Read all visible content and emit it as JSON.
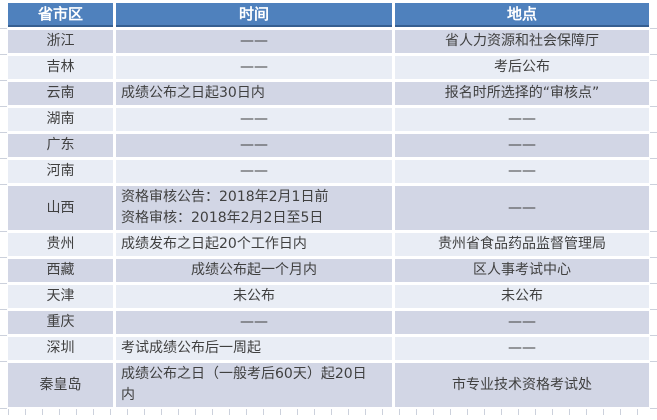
{
  "table": {
    "columns": [
      "省市区",
      "时间",
      "地点"
    ],
    "rows": [
      {
        "region": "浙江",
        "time": "——",
        "place": "省人力资源和社会保障厅"
      },
      {
        "region": "吉林",
        "time": "——",
        "place": "考后公布"
      },
      {
        "region": "云南",
        "time": "成绩公布之日起30日内",
        "time_align": "left",
        "place": "报名时所选择的“审核点”"
      },
      {
        "region": "湖南",
        "time": "——",
        "place": "——"
      },
      {
        "region": "广东",
        "time": "——",
        "place": "——"
      },
      {
        "region": "河南",
        "time": "——",
        "place": "——"
      },
      {
        "region": "山西",
        "time": "资格审核公告：2018年2月1日前\n资格审核：2018年2月2日至5日",
        "time_align": "left",
        "place": "——"
      },
      {
        "region": "贵州",
        "time": "成绩发布之日起20个工作日内",
        "time_align": "left",
        "place": "贵州省食品药品监督管理局"
      },
      {
        "region": "西藏",
        "time": "成绩公布起一个月内",
        "place": "区人事考试中心"
      },
      {
        "region": "天津",
        "time": "未公布",
        "place": "未公布"
      },
      {
        "region": "重庆",
        "time": "——",
        "place": "——"
      },
      {
        "region": "深圳",
        "time": "考试成绩公布后一周起",
        "time_align": "left",
        "place": "——"
      },
      {
        "region": "秦皇岛",
        "time": "成绩公布之日（一般考后60天）起20日内",
        "time_align": "left",
        "place": "市专业技术资格考试处"
      }
    ],
    "colors": {
      "header_bg": "#4f81bd",
      "header_border": "#365f91",
      "header_text": "#ffffff",
      "row_dark": "#d2d6e5",
      "row_light": "#e9edf5",
      "text": "#404040"
    }
  }
}
